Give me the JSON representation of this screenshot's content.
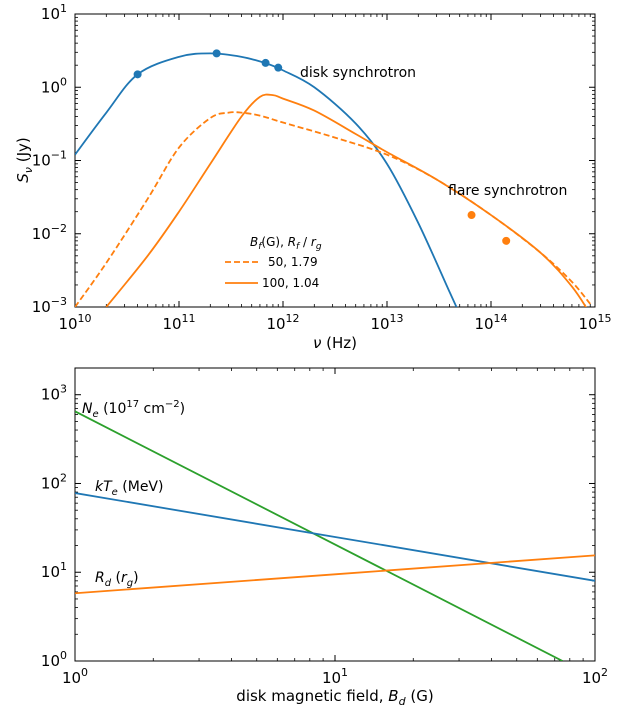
{
  "colors": {
    "blue": "#1f77b4",
    "orange": "#ff7f0e",
    "green": "#2ca02c"
  },
  "chart_data": [
    {
      "type": "line",
      "xscale": "log",
      "yscale": "log",
      "xlim": [
        10000000000.0,
        1000000000000000.0
      ],
      "ylim": [
        0.001,
        10
      ],
      "xlabel": "ν (Hz)",
      "ylabel": "Sν (Jy)",
      "xticks": [
        {
          "base": "10",
          "exp": "10",
          "value": 10000000000.0
        },
        {
          "base": "10",
          "exp": "11",
          "value": 100000000000.0
        },
        {
          "base": "10",
          "exp": "12",
          "value": 1000000000000.0
        },
        {
          "base": "10",
          "exp": "13",
          "value": 10000000000000.0
        },
        {
          "base": "10",
          "exp": "14",
          "value": 100000000000000.0
        },
        {
          "base": "10",
          "exp": "15",
          "value": 1000000000000000.0
        }
      ],
      "yticks": [
        {
          "base": "10",
          "exp": "−3",
          "value": 0.001
        },
        {
          "base": "10",
          "exp": "−2",
          "value": 0.01
        },
        {
          "base": "10",
          "exp": "−1",
          "value": 0.1
        },
        {
          "base": "10",
          "exp": "0",
          "value": 1
        },
        {
          "base": "10",
          "exp": "1",
          "value": 10
        }
      ],
      "annotations": {
        "disk": "disk synchrotron",
        "flare": "flare synchrotron"
      },
      "legend": {
        "location": "lower-center",
        "title": "Bf(G), Rf / rg",
        "entries": [
          {
            "label": "50, 1.79",
            "style": "dashed",
            "color": "orange"
          },
          {
            "label": "100, 1.04",
            "style": "solid",
            "color": "orange"
          }
        ]
      },
      "series": [
        {
          "id": "disk",
          "color": "blue",
          "style": "solid",
          "x": [
            10000000000.0,
            20000000000.0,
            40000000000.0,
            100000000000.0,
            200000000000.0,
            400000000000.0,
            700000000000.0,
            1000000000000.0,
            2000000000000.0,
            5000000000000.0,
            10000000000000.0,
            20000000000000.0,
            40000000000000.0,
            50000000000000.0
          ],
          "y": [
            0.12,
            0.45,
            1.5,
            2.6,
            2.9,
            2.6,
            2.1,
            1.7,
            1.0,
            0.32,
            0.09,
            0.014,
            0.0016,
            0.0008
          ]
        },
        {
          "id": "flare-dashed",
          "color": "orange",
          "style": "dashed",
          "x": [
            10000000000.0,
            20000000000.0,
            50000000000.0,
            100000000000.0,
            200000000000.0,
            300000000000.0,
            400000000000.0,
            600000000000.0,
            1000000000000.0,
            3000000000000.0,
            10000000000000.0,
            30000000000000.0,
            100000000000000.0,
            300000000000000.0,
            600000000000000.0,
            900000000000000.0
          ],
          "y": [
            0.001,
            0.004,
            0.03,
            0.15,
            0.38,
            0.45,
            0.45,
            0.41,
            0.33,
            0.21,
            0.12,
            0.055,
            0.018,
            0.0055,
            0.0022,
            0.0011
          ]
        },
        {
          "id": "flare-solid",
          "color": "orange",
          "style": "solid",
          "x": [
            20000000000.0,
            50000000000.0,
            100000000000.0,
            200000000000.0,
            400000000000.0,
            600000000000.0,
            800000000000.0,
            1000000000000.0,
            2000000000000.0,
            5000000000000.0,
            10000000000000.0,
            30000000000000.0,
            100000000000000.0,
            300000000000000.0,
            600000000000000.0,
            900000000000000.0
          ],
          "y": [
            0.001,
            0.005,
            0.02,
            0.09,
            0.4,
            0.74,
            0.78,
            0.7,
            0.48,
            0.23,
            0.13,
            0.055,
            0.018,
            0.0055,
            0.0019,
            0.0008
          ]
        }
      ],
      "points": [
        {
          "x": 40000000000.0,
          "y": 1.5,
          "color": "blue"
        },
        {
          "x": 230000000000.0,
          "y": 2.9,
          "color": "blue"
        },
        {
          "x": 680000000000.0,
          "y": 2.15,
          "color": "blue"
        },
        {
          "x": 900000000000.0,
          "y": 1.85,
          "color": "blue"
        },
        {
          "x": 65000000000000.0,
          "y": 0.018,
          "color": "orange"
        },
        {
          "x": 140000000000000.0,
          "y": 0.008,
          "color": "orange"
        }
      ]
    },
    {
      "type": "line",
      "xscale": "log",
      "yscale": "log",
      "xlim": [
        1,
        100
      ],
      "ylim": [
        1,
        2000
      ],
      "xlabel": "disk magnetic field, Bd (G)",
      "ylabel": "",
      "xticks": [
        {
          "base": "10",
          "exp": "0",
          "value": 1
        },
        {
          "base": "10",
          "exp": "1",
          "value": 10
        },
        {
          "base": "10",
          "exp": "2",
          "value": 100
        }
      ],
      "yticks": [
        {
          "base": "10",
          "exp": "0",
          "value": 1
        },
        {
          "base": "10",
          "exp": "1",
          "value": 10
        },
        {
          "base": "10",
          "exp": "2",
          "value": 100
        },
        {
          "base": "10",
          "exp": "3",
          "value": 1000
        }
      ],
      "series": [
        {
          "id": "Ne",
          "color": "green",
          "label": "Ne (10^17 cm^−2)",
          "x": [
            1,
            75
          ],
          "y": [
            650,
            1.0
          ]
        },
        {
          "id": "kTe",
          "color": "blue",
          "label": "kTe (MeV)",
          "x": [
            1,
            100
          ],
          "y": [
            78,
            8
          ]
        },
        {
          "id": "Rd",
          "color": "orange",
          "label": "Rd (rg)",
          "x": [
            1,
            100
          ],
          "y": [
            5.8,
            15.5
          ]
        }
      ],
      "series_labels": {
        "Ne": {
          "symbol": "N",
          "sub": "e",
          "rest": " (10",
          "exp": "17",
          "unit": " cm",
          "uexp": "−2",
          "close": ")"
        },
        "kTe": {
          "symbol": "kT",
          "sub": "e",
          "rest": " (MeV)"
        },
        "Rd": {
          "symbol": "R",
          "sub": "d",
          "rest": " (r",
          "sub2": "g",
          "close": ")"
        }
      }
    }
  ]
}
